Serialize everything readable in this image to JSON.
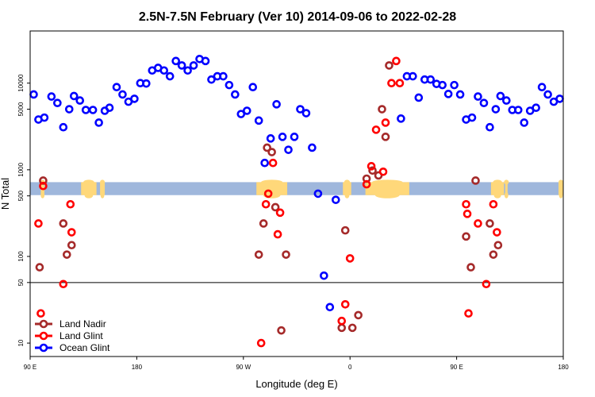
{
  "chart_data": {
    "type": "scatter",
    "title": "2.5N-7.5N February (Ver 10)   2014-09-06 to 2022-02-28",
    "xlabel": "Longitude (deg E)",
    "ylabel": "N Total",
    "x_axis": {
      "range": [
        90,
        540
      ],
      "ticks": [
        {
          "value": 90,
          "label": "90 E"
        },
        {
          "value": 180,
          "label": "180"
        },
        {
          "value": 270,
          "label": "90 W"
        },
        {
          "value": 360,
          "label": "0"
        },
        {
          "value": 450,
          "label": "90 E"
        },
        {
          "value": 540,
          "label": "180"
        }
      ]
    },
    "y_axis": {
      "scale": "log",
      "range": [
        7,
        40000
      ],
      "ticks": [
        {
          "value": 10,
          "label": "10"
        },
        {
          "value": 50,
          "label": "50"
        },
        {
          "value": 100,
          "label": "100"
        },
        {
          "value": 500,
          "label": "500"
        },
        {
          "value": 1000,
          "label": "1000"
        },
        {
          "value": 5000,
          "label": "5000"
        },
        {
          "value": 10000,
          "label": "10000"
        }
      ]
    },
    "reference_line": {
      "y": 50,
      "color": "#000000"
    },
    "map_strip": {
      "y_range": [
        510,
        720
      ],
      "ocean_color": "#9fb7dc",
      "land_color": "#ffd87a",
      "land_lon_spans": [
        [
          99,
          102
        ],
        [
          133,
          146
        ],
        [
          149,
          153
        ],
        [
          281,
          307
        ],
        [
          354,
          361
        ],
        [
          373,
          410
        ],
        [
          479,
          490
        ],
        [
          491,
          493
        ],
        [
          536,
          540
        ]
      ]
    },
    "legend": {
      "position": "bottom-left",
      "entries": [
        "Land Nadir",
        "Land Glint",
        "Ocean Glint"
      ]
    },
    "series": [
      {
        "name": "Land Nadir",
        "color": "#a52a2a",
        "points": [
          [
            98,
            75
          ],
          [
            101,
            750
          ],
          [
            118,
            240
          ],
          [
            121,
            105
          ],
          [
            125,
            135
          ],
          [
            283,
            105
          ],
          [
            287,
            240
          ],
          [
            290,
            1800
          ],
          [
            294,
            1600
          ],
          [
            297,
            370
          ],
          [
            302,
            14
          ],
          [
            306,
            105
          ],
          [
            353,
            15
          ],
          [
            356,
            200
          ],
          [
            362,
            15
          ],
          [
            367,
            21
          ],
          [
            374,
            790
          ],
          [
            379,
            980
          ],
          [
            384,
            860
          ],
          [
            387,
            5000
          ],
          [
            390,
            2400
          ],
          [
            393,
            16000
          ],
          [
            458,
            170
          ],
          [
            462,
            75
          ],
          [
            466,
            750
          ],
          [
            478,
            240
          ],
          [
            481,
            105
          ],
          [
            485,
            135
          ]
        ]
      },
      {
        "name": "Land Glint",
        "color": "#ff0000",
        "points": [
          [
            97,
            240
          ],
          [
            99,
            22
          ],
          [
            101,
            650
          ],
          [
            118,
            48
          ],
          [
            124,
            400
          ],
          [
            125,
            190
          ],
          [
            285,
            10
          ],
          [
            289,
            400
          ],
          [
            291,
            530
          ],
          [
            295,
            1200
          ],
          [
            299,
            180
          ],
          [
            301,
            320
          ],
          [
            353,
            18
          ],
          [
            356,
            28
          ],
          [
            360,
            95
          ],
          [
            374,
            680
          ],
          [
            378,
            1100
          ],
          [
            382,
            2900
          ],
          [
            388,
            950
          ],
          [
            390,
            3500
          ],
          [
            395,
            10000
          ],
          [
            399,
            18000
          ],
          [
            402,
            10000
          ],
          [
            458,
            400
          ],
          [
            459,
            310
          ],
          [
            460,
            22
          ],
          [
            468,
            240
          ],
          [
            475,
            48
          ],
          [
            481,
            400
          ],
          [
            484,
            190
          ]
        ]
      },
      {
        "name": "Ocean Glint",
        "color": "#0000ff",
        "points": [
          [
            93,
            7400
          ],
          [
            97,
            3800
          ],
          [
            102,
            4000
          ],
          [
            108,
            7000
          ],
          [
            113,
            5900
          ],
          [
            118,
            3100
          ],
          [
            123,
            5000
          ],
          [
            127,
            7100
          ],
          [
            132,
            6300
          ],
          [
            137,
            4900
          ],
          [
            143,
            4900
          ],
          [
            148,
            3500
          ],
          [
            153,
            4800
          ],
          [
            157,
            5200
          ],
          [
            163,
            9000
          ],
          [
            168,
            7400
          ],
          [
            173,
            6100
          ],
          [
            178,
            6600
          ],
          [
            183,
            10000
          ],
          [
            188,
            9900
          ],
          [
            193,
            14000
          ],
          [
            198,
            15000
          ],
          [
            203,
            14000
          ],
          [
            208,
            12000
          ],
          [
            213,
            18000
          ],
          [
            218,
            16000
          ],
          [
            223,
            14000
          ],
          [
            228,
            16000
          ],
          [
            233,
            19000
          ],
          [
            238,
            18000
          ],
          [
            243,
            11000
          ],
          [
            248,
            12000
          ],
          [
            253,
            12000
          ],
          [
            258,
            9500
          ],
          [
            263,
            7400
          ],
          [
            268,
            4400
          ],
          [
            273,
            4800
          ],
          [
            278,
            9000
          ],
          [
            283,
            3700
          ],
          [
            288,
            1200
          ],
          [
            293,
            2300
          ],
          [
            298,
            5700
          ],
          [
            303,
            2400
          ],
          [
            308,
            1700
          ],
          [
            313,
            2400
          ],
          [
            318,
            5000
          ],
          [
            323,
            4500
          ],
          [
            328,
            1800
          ],
          [
            333,
            530
          ],
          [
            338,
            60
          ],
          [
            343,
            26
          ],
          [
            348,
            450
          ],
          [
            403,
            3900
          ],
          [
            408,
            12000
          ],
          [
            413,
            12000
          ],
          [
            418,
            6800
          ],
          [
            423,
            11000
          ],
          [
            428,
            11000
          ],
          [
            433,
            9800
          ],
          [
            438,
            9500
          ],
          [
            443,
            7500
          ],
          [
            448,
            9500
          ],
          [
            453,
            7400
          ],
          [
            458,
            3800
          ],
          [
            463,
            4000
          ],
          [
            468,
            7000
          ],
          [
            473,
            5900
          ],
          [
            478,
            3100
          ],
          [
            483,
            5000
          ],
          [
            487,
            7100
          ],
          [
            492,
            6300
          ],
          [
            497,
            4900
          ],
          [
            502,
            4900
          ],
          [
            507,
            3500
          ],
          [
            512,
            4800
          ],
          [
            517,
            5200
          ],
          [
            522,
            9000
          ],
          [
            527,
            7400
          ],
          [
            532,
            6100
          ],
          [
            537,
            6600
          ]
        ]
      }
    ]
  }
}
